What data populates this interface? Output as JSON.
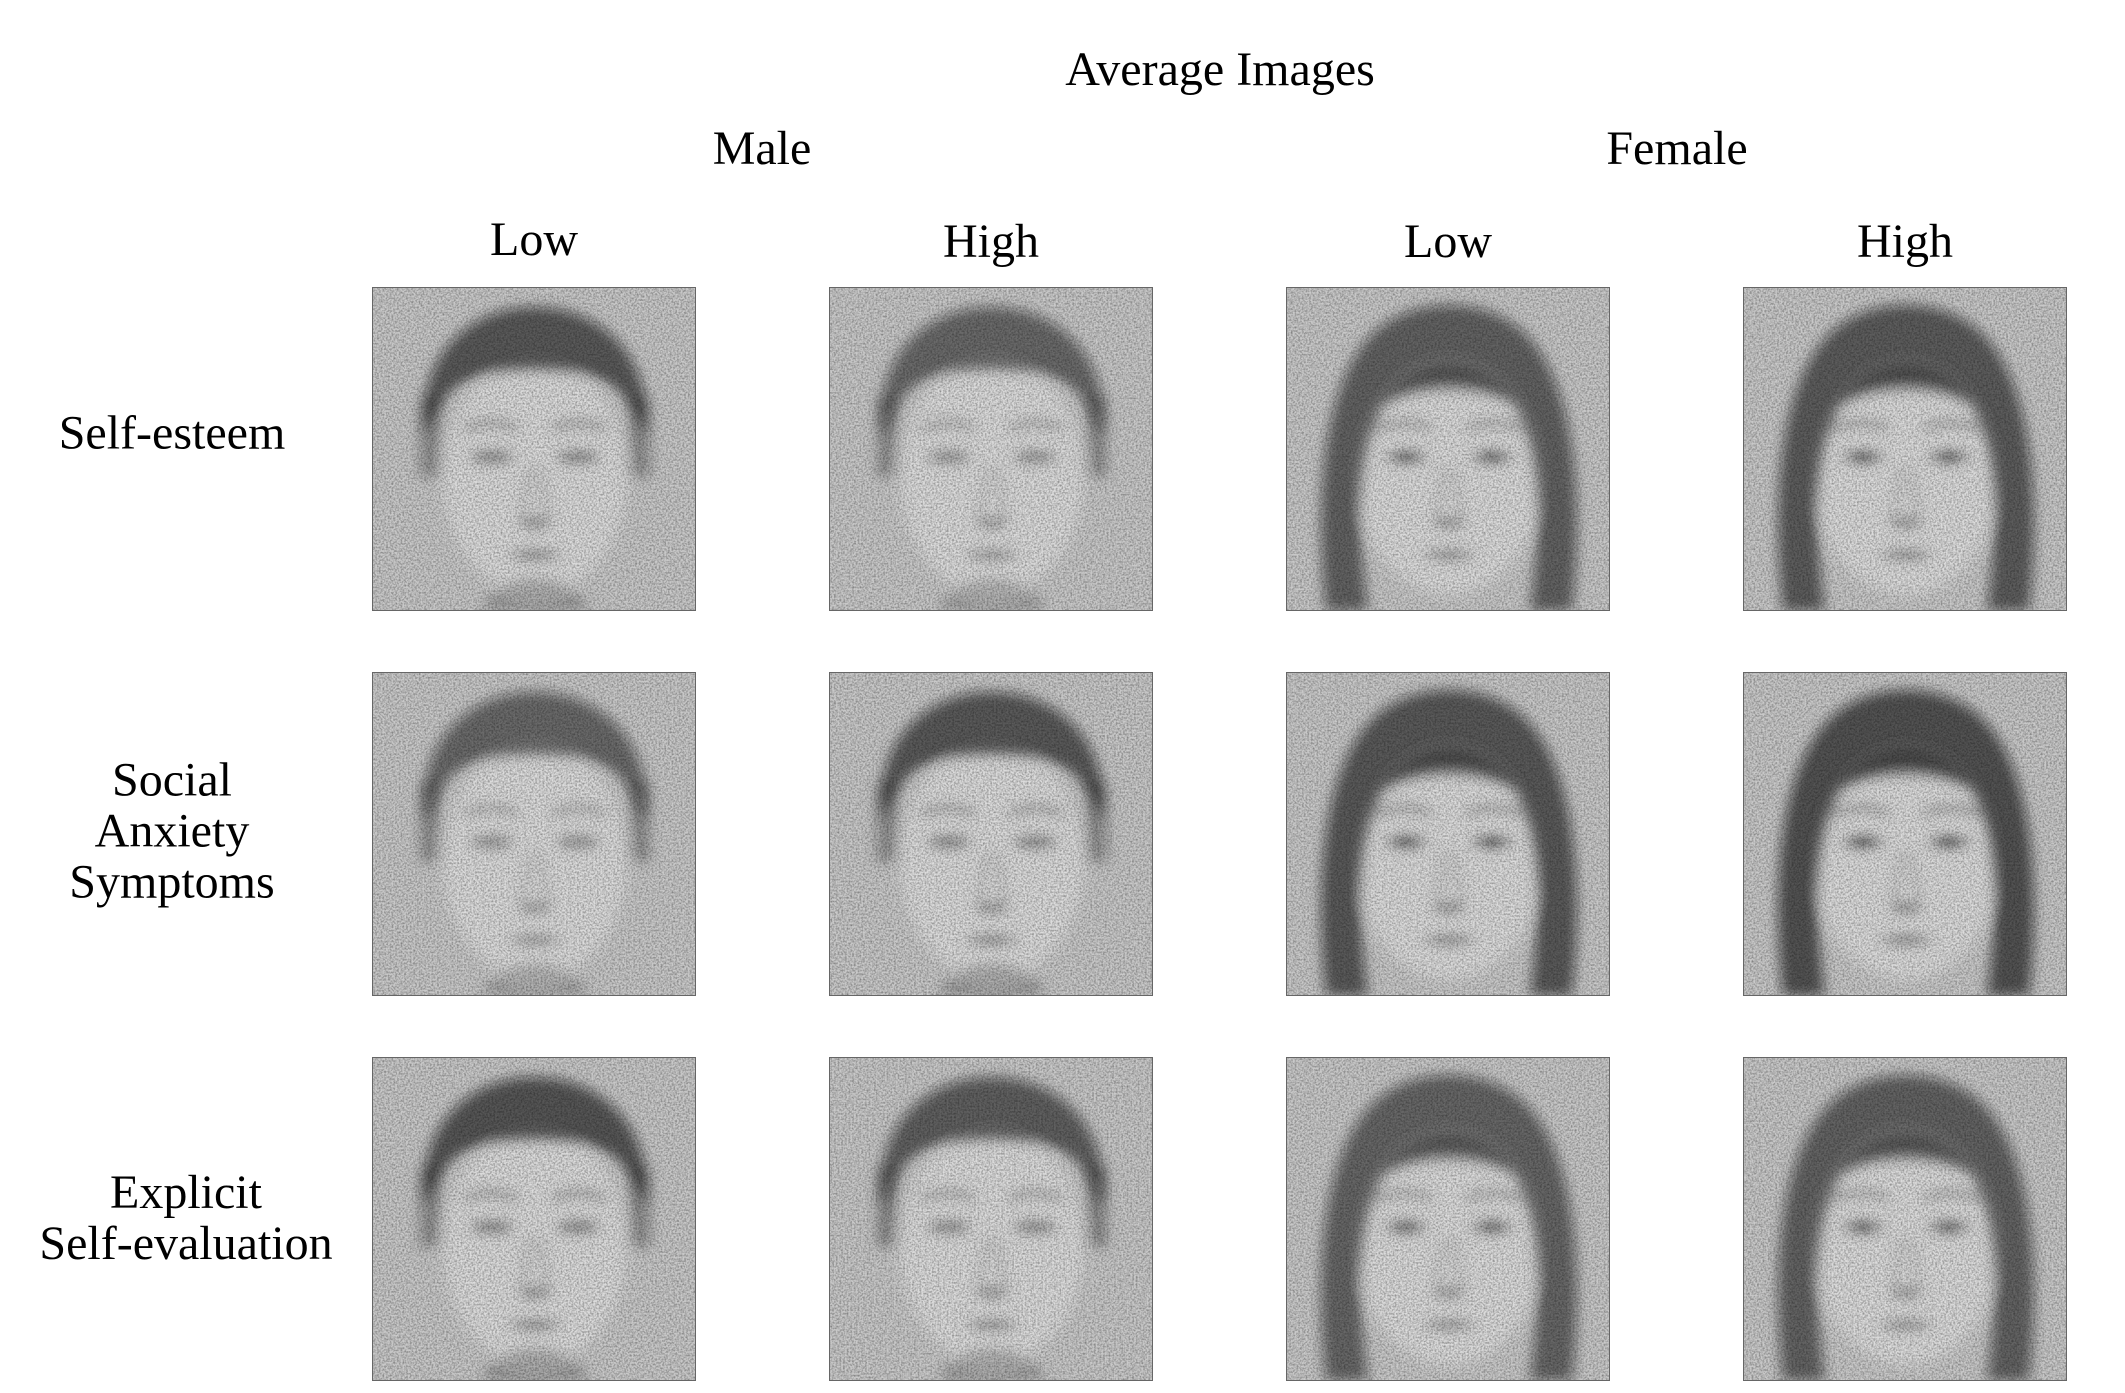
{
  "title": "Average Images",
  "groups": {
    "male": "Male",
    "female": "Female"
  },
  "columns": {
    "male_low": "Low",
    "male_high": "High",
    "female_low": "Low",
    "female_high": "High"
  },
  "rows": {
    "self_esteem": [
      "Self-esteem"
    ],
    "social_anxiety": [
      "Social",
      "Anxiety",
      "Symptoms"
    ],
    "explicit_self_evaluation": [
      "Explicit",
      "Self-evaluation"
    ]
  },
  "images": [
    {
      "row": "Self-esteem",
      "group": "Male",
      "level": "Low",
      "gender": "male",
      "darkness": 0.72
    },
    {
      "row": "Self-esteem",
      "group": "Male",
      "level": "High",
      "gender": "male",
      "darkness": 0.62
    },
    {
      "row": "Self-esteem",
      "group": "Female",
      "level": "Low",
      "gender": "female",
      "darkness": 0.66
    },
    {
      "row": "Self-esteem",
      "group": "Female",
      "level": "High",
      "gender": "female",
      "darkness": 0.7
    },
    {
      "row": "Social Anxiety Symptoms",
      "group": "Male",
      "level": "Low",
      "gender": "male",
      "darkness": 0.62
    },
    {
      "row": "Social Anxiety Symptoms",
      "group": "Male",
      "level": "High",
      "gender": "male",
      "darkness": 0.72
    },
    {
      "row": "Social Anxiety Symptoms",
      "group": "Female",
      "level": "Low",
      "gender": "female",
      "darkness": 0.72
    },
    {
      "row": "Social Anxiety Symptoms",
      "group": "Female",
      "level": "High",
      "gender": "female",
      "darkness": 0.76
    },
    {
      "row": "Explicit Self-evaluation",
      "group": "Male",
      "level": "Low",
      "gender": "male",
      "darkness": 0.74
    },
    {
      "row": "Explicit Self-evaluation",
      "group": "Male",
      "level": "High",
      "gender": "male",
      "darkness": 0.68
    },
    {
      "row": "Explicit Self-evaluation",
      "group": "Female",
      "level": "Low",
      "gender": "female",
      "darkness": 0.64
    },
    {
      "row": "Explicit Self-evaluation",
      "group": "Female",
      "level": "High",
      "gender": "female",
      "darkness": 0.66
    }
  ]
}
